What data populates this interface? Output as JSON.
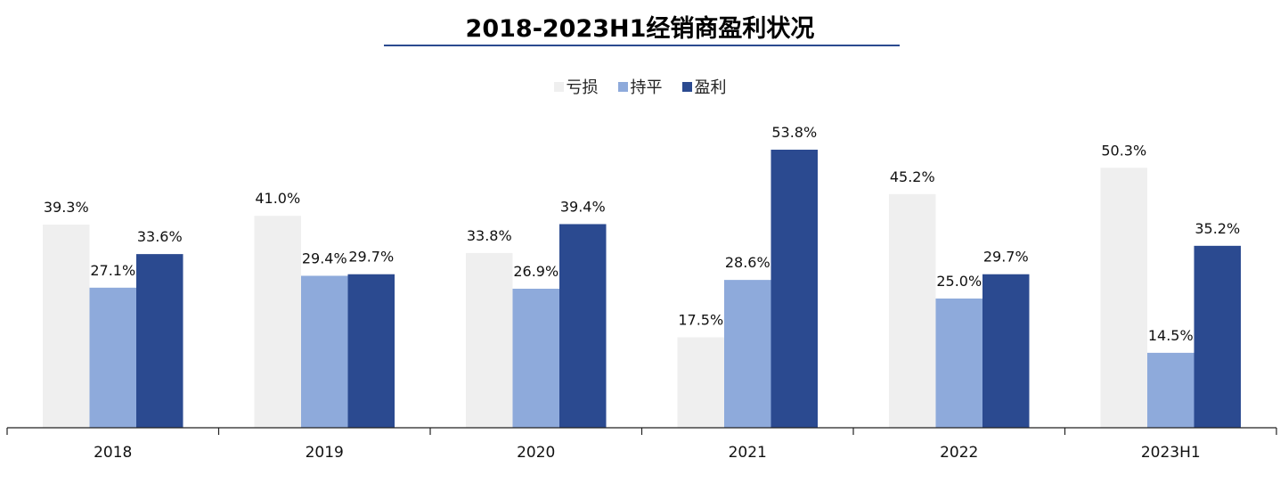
{
  "chart_data": {
    "type": "bar",
    "title": "2018-2023H1经销商盈利状况",
    "categories": [
      "2018",
      "2019",
      "2020",
      "2021",
      "2022",
      "2023H1"
    ],
    "series": [
      {
        "name": "亏损",
        "color": "#efefef",
        "values": [
          39.3,
          41.0,
          33.8,
          17.5,
          45.2,
          50.3
        ],
        "labels": [
          "39.3%",
          "41.0%",
          "33.8%",
          "17.5%",
          "45.2%",
          "50.3%"
        ]
      },
      {
        "name": "持平",
        "color": "#8eaadb",
        "values": [
          27.1,
          29.4,
          26.9,
          28.6,
          25.0,
          14.5
        ],
        "labels": [
          "27.1%",
          "29.4%",
          "26.9%",
          "28.6%",
          "25.0%",
          "14.5%"
        ]
      },
      {
        "name": "盈利",
        "color": "#2b4a90",
        "values": [
          33.6,
          29.7,
          39.4,
          53.8,
          29.7,
          35.2
        ],
        "labels": [
          "33.6%",
          "29.7%",
          "39.4%",
          "53.8%",
          "29.7%",
          "35.2%"
        ]
      }
    ],
    "xlabel": "",
    "ylabel": "",
    "ylim": [
      0,
      56
    ],
    "grid": false,
    "legend_position": "top-center",
    "title_underline_color": "#2b4a8f"
  }
}
